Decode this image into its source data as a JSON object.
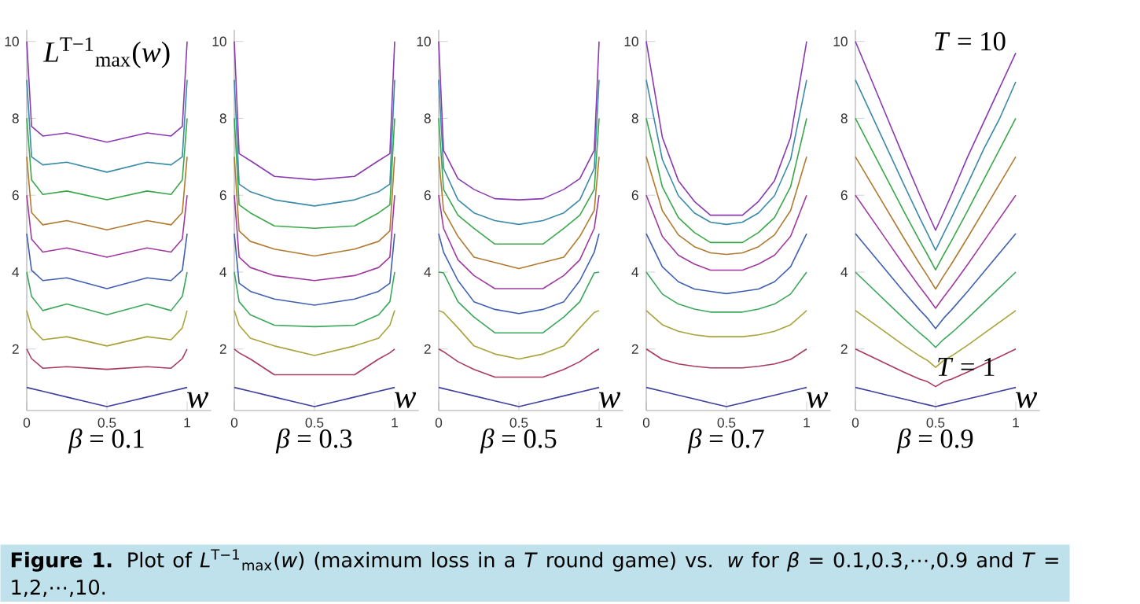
{
  "chart_data": [
    {
      "type": "line",
      "title": "*β* = 0.1",
      "xlabel": "w",
      "ylabel": "*L*$^{T−1}$$_{max}$(*w*)",
      "x": [
        0,
        0.03,
        0.1,
        0.25,
        0.5,
        0.75,
        0.9,
        0.97,
        1
      ],
      "xlim": [
        0,
        1.15
      ],
      "ylim": [
        0.4,
        10.3
      ],
      "xticks": [
        0,
        0.5,
        1
      ],
      "yticks": [
        2,
        4,
        6,
        8,
        10
      ],
      "annotations": [
        "**Figure 1.** Plot of *L*$^{T−1}$$_{max}$(*w*) (maximum loss in a *T* round game) vs. *w* for *β* = 0.1,0.3,⋯,0.9 and *T* = 1,2,⋯,10."
      ],
      "series": [
        {
          "color": "#3f3f9f",
          "values": [
            1,
            0.97,
            0.9,
            0.75,
            0.5,
            0.75,
            0.9,
            0.97,
            1
          ]
        },
        {
          "color": "#a83a5e",
          "values": [
            2,
            1.75,
            1.5,
            1.54,
            1.47,
            1.54,
            1.5,
            1.75,
            2
          ]
        },
        {
          "color": "#a8a33a",
          "values": [
            3,
            2.55,
            2.24,
            2.32,
            2.08,
            2.32,
            2.24,
            2.55,
            3
          ]
        },
        {
          "color": "#3aa85a",
          "values": [
            4,
            3.37,
            3.0,
            3.17,
            2.89,
            3.17,
            3.0,
            3.37,
            4
          ]
        },
        {
          "color": "#3f5fb0",
          "values": [
            5,
            4.05,
            3.78,
            3.85,
            3.57,
            3.85,
            3.78,
            4.05,
            5
          ]
        },
        {
          "color": "#a03aa0",
          "values": [
            6,
            4.86,
            4.52,
            4.63,
            4.39,
            4.63,
            4.52,
            4.86,
            6
          ]
        },
        {
          "color": "#b07a30",
          "values": [
            7,
            5.55,
            5.23,
            5.34,
            5.1,
            5.34,
            5.23,
            5.55,
            7
          ]
        },
        {
          "color": "#3aa84a",
          "values": [
            8,
            6.4,
            6.02,
            6.11,
            5.88,
            6.11,
            6.02,
            6.4,
            8
          ]
        },
        {
          "color": "#3a8aa8",
          "values": [
            9,
            7.0,
            6.79,
            6.86,
            6.6,
            6.86,
            6.79,
            7.0,
            9
          ]
        },
        {
          "color": "#8a3ab0",
          "values": [
            10,
            7.79,
            7.54,
            7.62,
            7.38,
            7.62,
            7.54,
            7.79,
            10
          ]
        }
      ]
    },
    {
      "type": "line",
      "title": "*β* = 0.3",
      "xlabel": "w",
      "x": [
        0,
        0.03,
        0.1,
        0.25,
        0.5,
        0.75,
        0.9,
        0.97,
        1
      ],
      "xlim": [
        0,
        1.15
      ],
      "ylim": [
        0.4,
        10.3
      ],
      "xticks": [
        0,
        0.5,
        1
      ],
      "yticks": [
        2,
        4,
        6,
        8,
        10
      ],
      "series": [
        {
          "color": "#3f3f9f",
          "values": [
            1,
            0.97,
            0.9,
            0.75,
            0.5,
            0.75,
            0.9,
            0.97,
            1
          ]
        },
        {
          "color": "#a83a5e",
          "values": [
            2,
            1.9,
            1.74,
            1.33,
            1.33,
            1.33,
            1.74,
            1.9,
            2
          ]
        },
        {
          "color": "#a8a33a",
          "values": [
            3,
            2.62,
            2.28,
            2.08,
            1.83,
            2.08,
            2.28,
            2.62,
            3
          ]
        },
        {
          "color": "#3aa85a",
          "values": [
            4,
            3.23,
            2.89,
            2.62,
            2.58,
            2.62,
            2.89,
            3.23,
            4
          ]
        },
        {
          "color": "#3f5fb0",
          "values": [
            5,
            3.71,
            3.5,
            3.3,
            3.14,
            3.3,
            3.5,
            3.71,
            5
          ]
        },
        {
          "color": "#a03aa0",
          "values": [
            6,
            4.39,
            4.12,
            3.91,
            3.78,
            3.91,
            4.12,
            4.39,
            6
          ]
        },
        {
          "color": "#b07a30",
          "values": [
            7,
            5.07,
            4.8,
            4.6,
            4.42,
            4.6,
            4.8,
            5.07,
            7
          ]
        },
        {
          "color": "#3aa84a",
          "values": [
            8,
            5.75,
            5.54,
            5.2,
            5.14,
            5.2,
            5.54,
            5.75,
            8
          ]
        },
        {
          "color": "#3a8aa8",
          "values": [
            9,
            6.29,
            6.09,
            5.88,
            5.72,
            5.88,
            6.09,
            6.29,
            9
          ]
        },
        {
          "color": "#8a3ab0",
          "values": [
            10,
            7.08,
            6.9,
            6.49,
            6.4,
            6.49,
            6.9,
            7.08,
            10
          ]
        }
      ]
    },
    {
      "type": "line",
      "title": "*β* = 0.5",
      "xlabel": "w",
      "x": [
        0,
        0.03,
        0.12,
        0.22,
        0.35,
        0.5,
        0.65,
        0.78,
        0.88,
        0.97,
        1
      ],
      "xlim": [
        0,
        1.15
      ],
      "ylim": [
        0.4,
        10.3
      ],
      "xticks": [
        0,
        0.5,
        1
      ],
      "yticks": [
        2,
        4,
        6,
        8,
        10
      ],
      "series": [
        {
          "color": "#3f3f9f",
          "values": [
            1,
            0.97,
            0.88,
            0.78,
            0.65,
            0.5,
            0.65,
            0.78,
            0.88,
            0.97,
            1
          ]
        },
        {
          "color": "#a83a5e",
          "values": [
            2,
            1.93,
            1.67,
            1.47,
            1.27,
            1.27,
            1.27,
            1.47,
            1.67,
            1.93,
            2
          ]
        },
        {
          "color": "#a8a33a",
          "values": [
            3,
            2.95,
            2.55,
            2.08,
            1.87,
            1.74,
            1.87,
            2.08,
            2.55,
            2.95,
            3
          ]
        },
        {
          "color": "#3aa85a",
          "values": [
            4,
            3.98,
            3.23,
            2.83,
            2.42,
            2.42,
            2.42,
            2.83,
            3.23,
            3.98,
            4
          ]
        },
        {
          "color": "#3f5fb0",
          "values": [
            5,
            4.52,
            3.78,
            3.23,
            3.03,
            2.92,
            3.03,
            3.23,
            3.78,
            4.52,
            5
          ]
        },
        {
          "color": "#a03aa0",
          "values": [
            6,
            5.14,
            4.32,
            3.91,
            3.57,
            3.57,
            3.57,
            3.91,
            4.32,
            5.14,
            6
          ]
        },
        {
          "color": "#b07a30",
          "values": [
            7,
            5.61,
            4.93,
            4.39,
            4.25,
            4.09,
            4.25,
            4.39,
            4.93,
            5.61,
            7
          ]
        },
        {
          "color": "#3aa84a",
          "values": [
            8,
            6.15,
            5.48,
            5.14,
            4.73,
            4.73,
            4.73,
            5.14,
            5.48,
            6.15,
            8
          ]
        },
        {
          "color": "#3a8aa8",
          "values": [
            9,
            6.7,
            5.88,
            5.54,
            5.34,
            5.24,
            5.34,
            5.54,
            5.88,
            6.7,
            9
          ]
        },
        {
          "color": "#8a3ab0",
          "values": [
            10,
            7.17,
            6.43,
            6.15,
            5.91,
            5.88,
            5.91,
            6.15,
            6.43,
            7.17,
            10
          ]
        }
      ]
    },
    {
      "type": "line",
      "title": "*β* = 0.7",
      "xlabel": "w",
      "x": [
        0,
        0.1,
        0.2,
        0.3,
        0.4,
        0.5,
        0.6,
        0.7,
        0.8,
        0.9,
        1
      ],
      "xlim": [
        0,
        1.15
      ],
      "ylim": [
        0.4,
        10.3
      ],
      "xticks": [
        0,
        0.5,
        1
      ],
      "yticks": [
        2,
        4,
        6,
        8,
        10
      ],
      "series": [
        {
          "color": "#3f3f9f",
          "values": [
            1,
            0.9,
            0.8,
            0.7,
            0.6,
            0.5,
            0.6,
            0.7,
            0.8,
            0.9,
            1
          ]
        },
        {
          "color": "#a83a5e",
          "values": [
            2,
            1.73,
            1.61,
            1.55,
            1.51,
            1.51,
            1.51,
            1.55,
            1.61,
            1.73,
            2
          ]
        },
        {
          "color": "#a8a33a",
          "values": [
            3,
            2.63,
            2.46,
            2.37,
            2.32,
            2.32,
            2.32,
            2.37,
            2.46,
            2.63,
            3
          ]
        },
        {
          "color": "#3aa85a",
          "values": [
            4,
            3.43,
            3.17,
            3.04,
            2.96,
            2.96,
            2.96,
            3.04,
            3.17,
            3.43,
            4
          ]
        },
        {
          "color": "#3f5fb0",
          "values": [
            5,
            4.14,
            3.75,
            3.56,
            3.5,
            3.44,
            3.5,
            3.56,
            3.75,
            4.14,
            5
          ]
        },
        {
          "color": "#a03aa0",
          "values": [
            6,
            4.93,
            4.44,
            4.21,
            4.05,
            4.05,
            4.05,
            4.21,
            4.44,
            4.93,
            6
          ]
        },
        {
          "color": "#b07a30",
          "values": [
            7,
            5.6,
            4.97,
            4.66,
            4.5,
            4.46,
            4.5,
            4.66,
            4.97,
            5.6,
            7
          ]
        },
        {
          "color": "#3aa84a",
          "values": [
            8,
            6.22,
            5.42,
            5.03,
            4.77,
            4.77,
            4.77,
            5.03,
            5.42,
            6.22,
            8
          ]
        },
        {
          "color": "#3a8aa8",
          "values": [
            9,
            6.93,
            5.99,
            5.54,
            5.3,
            5.24,
            5.3,
            5.54,
            5.99,
            6.93,
            9
          ]
        },
        {
          "color": "#8a3ab0",
          "values": [
            10,
            7.51,
            6.38,
            5.84,
            5.48,
            5.48,
            5.48,
            5.84,
            6.38,
            7.51,
            10
          ]
        }
      ]
    },
    {
      "type": "line",
      "title": "*β* = 0.9",
      "xlabel": "w",
      "x": [
        0,
        0.1,
        0.2,
        0.3,
        0.4,
        0.45,
        0.5,
        0.55,
        0.6,
        0.7,
        0.8,
        0.9,
        1
      ],
      "xlim": [
        0,
        1.15
      ],
      "ylim": [
        0.4,
        10.3
      ],
      "xticks": [
        0,
        0.5,
        1
      ],
      "yticks": [
        2,
        4,
        6,
        8,
        10
      ],
      "annotations": [
        "*T* = 10",
        "*T* = 1"
      ],
      "series": [
        {
          "color": "#3f3f9f",
          "values": [
            1,
            0.9,
            0.8,
            0.7,
            0.6,
            0.55,
            0.5,
            0.55,
            0.6,
            0.7,
            0.8,
            0.9,
            1
          ]
        },
        {
          "color": "#a83a5e",
          "values": [
            2,
            1.8,
            1.6,
            1.4,
            1.22,
            1.15,
            1.02,
            1.15,
            1.22,
            1.4,
            1.6,
            1.8,
            2
          ]
        },
        {
          "color": "#a8a33a",
          "values": [
            3,
            2.7,
            2.4,
            2.1,
            1.82,
            1.7,
            1.52,
            1.7,
            1.82,
            2.1,
            2.4,
            2.7,
            3
          ]
        },
        {
          "color": "#3aa85a",
          "values": [
            4,
            3.6,
            3.2,
            2.8,
            2.42,
            2.25,
            2.04,
            2.25,
            2.42,
            2.8,
            3.2,
            3.6,
            4
          ]
        },
        {
          "color": "#3f5fb0",
          "values": [
            5,
            4.5,
            4.0,
            3.5,
            3.02,
            2.8,
            2.53,
            2.8,
            3.02,
            3.5,
            4.0,
            4.5,
            5
          ]
        },
        {
          "color": "#a03aa0",
          "values": [
            6,
            5.4,
            4.8,
            4.2,
            3.62,
            3.35,
            3.06,
            3.35,
            3.62,
            4.2,
            4.8,
            5.4,
            6
          ]
        },
        {
          "color": "#b07a30",
          "values": [
            7,
            6.3,
            5.6,
            4.9,
            4.22,
            3.9,
            3.56,
            3.9,
            4.22,
            4.9,
            5.6,
            6.3,
            7
          ]
        },
        {
          "color": "#3aa84a",
          "values": [
            8,
            7.2,
            6.4,
            5.6,
            4.82,
            4.45,
            4.06,
            4.45,
            4.82,
            5.6,
            6.4,
            7.2,
            8
          ]
        },
        {
          "color": "#3a8aa8",
          "values": [
            9,
            8.1,
            7.2,
            6.3,
            5.42,
            5.0,
            4.57,
            5.0,
            5.42,
            6.3,
            7.2,
            8.0,
            8.95
          ]
        },
        {
          "color": "#8a3ab0",
          "values": [
            10,
            9.0,
            8.0,
            7.0,
            6.02,
            5.55,
            5.09,
            5.55,
            6.02,
            7.0,
            7.9,
            8.8,
            9.7
          ]
        }
      ]
    }
  ]
}
